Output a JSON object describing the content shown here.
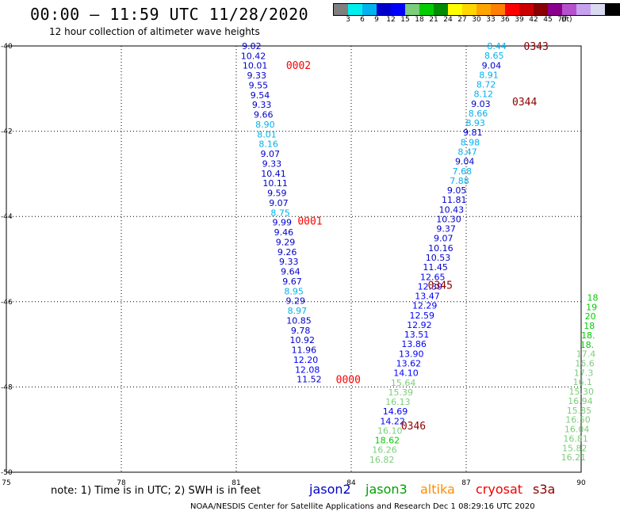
{
  "header": {
    "title": "00:00 – 11:59 UTC 11/28/2020",
    "subtitle": "12 hour collection of altimeter wave heights"
  },
  "colorbar": {
    "swatches": [
      "#7f7f7f",
      "#00eeee",
      "#00b2ee",
      "#0000cd",
      "#0000ff",
      "#7ccd7c",
      "#00cd00",
      "#008b00",
      "#ffff00",
      "#ffd700",
      "#ffa500",
      "#ff7f00",
      "#ff0000",
      "#cd0000",
      "#8b0000",
      "#8b008b",
      "#b452cd",
      "#c6a2ee",
      "#d9d9f0",
      "#000000"
    ],
    "labels": [
      "3",
      "6",
      "9",
      "12",
      "15",
      "18",
      "21",
      "24",
      "27",
      "30",
      "33",
      "36",
      "39",
      "42",
      "45",
      "70",
      "(ft)"
    ]
  },
  "chart_data": {
    "type": "scatter",
    "xlim": [
      75,
      90
    ],
    "ylim": [
      -50,
      -40
    ],
    "x_ticks": [
      "75",
      "78",
      "81",
      "84",
      "87",
      "90"
    ],
    "y_ticks": [
      "-40",
      "-42",
      "-44",
      "-46",
      "-48",
      "-50"
    ],
    "grid": true,
    "series": [
      {
        "name": "jason2",
        "x0": 81.4,
        "x1": 82.9,
        "y0": -40.0,
        "y1": -47.82,
        "values": [
          "9.02",
          "10.42",
          "10.01",
          "9.33",
          "9.55",
          "9.54",
          "9.33",
          "9.66",
          "8.90",
          "8.01",
          "8.16",
          "9.07",
          "9.33",
          "10.41",
          "10.11",
          "9.59",
          "9.07",
          "8.75",
          "9.99",
          "9.46",
          "9.29",
          "9.26",
          "9.33",
          "9.64",
          "9.67",
          "8.95",
          "9.29",
          "8.97",
          "10.85",
          "9.78",
          "10.92",
          "11.96",
          "12.20",
          "12.08",
          "11.52"
        ]
      },
      {
        "name": "jason2",
        "x0": 87.8,
        "x1": 84.8,
        "y0": -40.0,
        "y1": -49.7,
        "values": [
          "8.44",
          "8.65",
          "9.04",
          "8.91",
          "8.72",
          "8.12",
          "9.03",
          "8.66",
          "8.93",
          "9.81",
          "8.98",
          "8.47",
          "9.04",
          "7.68",
          "7.88",
          "9.05",
          "11.81",
          "10.43",
          "10.30",
          "9.37",
          "9.07",
          "10.16",
          "10.53",
          "11.45",
          "12.65",
          "12.39",
          "13.47",
          "12.29",
          "12.59",
          "12.92",
          "13.51",
          "13.86",
          "13.90",
          "13.62",
          "14.10",
          "15.64",
          "15.39",
          "16.13",
          "14.69",
          "14.22",
          "16.10",
          "18.62",
          "16.26",
          "16.82"
        ]
      },
      {
        "name": "jason3",
        "x0": 90.3,
        "x1": 89.8,
        "y0": -45.9,
        "y1": -49.65,
        "values": [
          "18",
          "19",
          "20",
          "18",
          "18.",
          "18.",
          "17.4",
          "16.6",
          "17.3",
          "16.1",
          "15.30",
          "16.94",
          "15.85",
          "16.50",
          "16.04",
          "16.81",
          "15.82",
          "16.21"
        ]
      }
    ],
    "pass_labels": [
      {
        "text": "0002",
        "lon": 82.3,
        "lat": -40.45,
        "color": "#ff0000"
      },
      {
        "text": "0343",
        "lon": 88.5,
        "lat": -40.0,
        "color": "#8b0000"
      },
      {
        "text": "0344",
        "lon": 88.2,
        "lat": -41.3,
        "color": "#8b0000"
      },
      {
        "text": "0001",
        "lon": 82.6,
        "lat": -44.1,
        "color": "#ff0000"
      },
      {
        "text": "0345",
        "lon": 86.0,
        "lat": -45.6,
        "color": "#8b0000"
      },
      {
        "text": "0000",
        "lon": 83.6,
        "lat": -47.82,
        "color": "#ff0000"
      },
      {
        "text": "0346",
        "lon": 85.3,
        "lat": -48.9,
        "color": "#8b0000"
      }
    ]
  },
  "note": "note: 1) Time is in UTC; 2) SWH is in feet",
  "satellites": [
    {
      "name": "jason2",
      "color": "#0000cd"
    },
    {
      "name": "jason3",
      "color": "#00a000"
    },
    {
      "name": "altika",
      "color": "#ff8c00"
    },
    {
      "name": "cryosat",
      "color": "#ee0000"
    },
    {
      "name": "s3a",
      "color": "#8b0000"
    }
  ],
  "footer": "NOAA/NESDIS Center for Satellite Applications and Research    Dec  1 08:29:16 UTC 2020"
}
